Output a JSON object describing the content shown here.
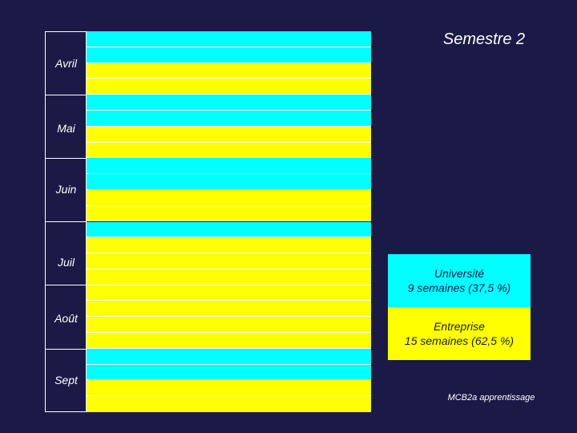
{
  "title": "Semestre 2",
  "months": [
    {
      "label": "Avril",
      "weeks": 4
    },
    {
      "label": "Mai",
      "weeks": 4
    },
    {
      "label": "Juin",
      "weeks": 4
    },
    {
      "label": "Juil",
      "weeks": 4
    },
    {
      "label": "Août",
      "weeks": 4
    },
    {
      "label": "Sept",
      "weeks": 4
    }
  ],
  "weeks": [
    "U",
    "U",
    "E",
    "E",
    "U",
    "U",
    "E",
    "E",
    "U",
    "U",
    "E",
    "E",
    "U",
    "E",
    "E",
    "E",
    "E",
    "E",
    "E",
    "E",
    "U",
    "U",
    "E",
    "E"
  ],
  "colors": {
    "background": "#1b1a47",
    "universite": "#00ffff",
    "entreprise": "#ffff00",
    "text": "#ffffff"
  },
  "legend": {
    "universite": {
      "line1": "Université",
      "line2": "9 semaines (37,5 %)"
    },
    "entreprise": {
      "line1": "Entreprise",
      "line2": "15 semaines (62,5 %)"
    }
  },
  "footer": "MCB2a apprentissage"
}
